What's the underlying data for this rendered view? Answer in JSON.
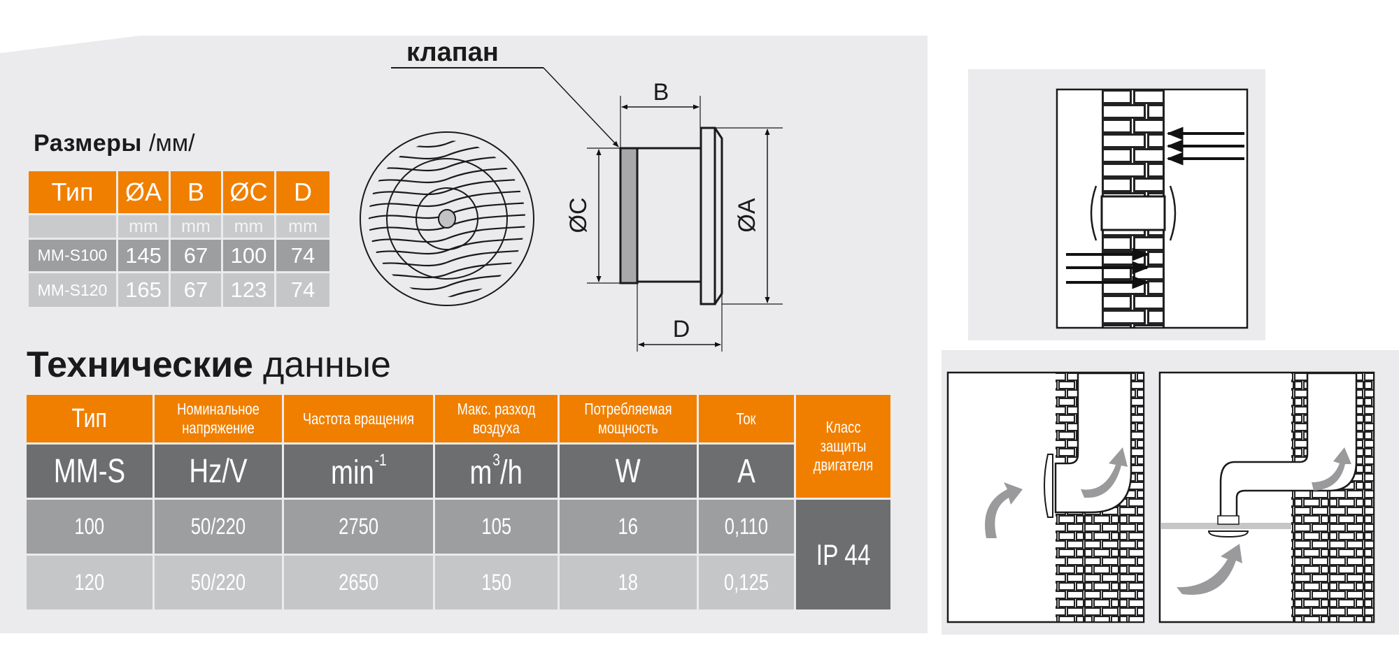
{
  "sizes": {
    "title_bold": "Размеры",
    "title_unit": "/мм/",
    "headers": [
      "Тип",
      "ØA",
      "B",
      "ØC",
      "D"
    ],
    "units": [
      "",
      "mm",
      "mm",
      "mm",
      "mm"
    ],
    "rows": [
      [
        "MM-S100",
        "145",
        "67",
        "100",
        "74"
      ],
      [
        "MM-S120",
        "165",
        "67",
        "123",
        "74"
      ]
    ]
  },
  "drawing": {
    "valve_label": "клапан",
    "dim_b": "B",
    "dim_c": "ØC",
    "dim_a": "ØA",
    "dim_d": "D"
  },
  "tech": {
    "title_bold": "Технические",
    "title_light": "данные",
    "headers": [
      "Тип",
      "Номинальное напряжение",
      "Частота вращения",
      "Макс. разход воздуха",
      "Потребляемая мощность",
      "Ток",
      "Класс защиты двигателя"
    ],
    "units": {
      "type": "MM-S",
      "voltage": "Hz/V",
      "speed": "min",
      "speed_sup": "-1",
      "airflow": "m",
      "airflow_sup": "3",
      "airflow_tail": "/h",
      "power": "W",
      "current": "A"
    },
    "rows": [
      [
        "100",
        "50/220",
        "2750",
        "105",
        "16",
        "0,110"
      ],
      [
        "120",
        "50/220",
        "2650",
        "150",
        "18",
        "0,125"
      ]
    ],
    "protection_class": "IP 44"
  },
  "colors": {
    "accent_orange": "#f07f00",
    "dark_grey": "#6d6e70",
    "mid_grey": "#9d9ea0",
    "light_grey": "#c5c6c8",
    "panel_bg": "#ebebed"
  }
}
